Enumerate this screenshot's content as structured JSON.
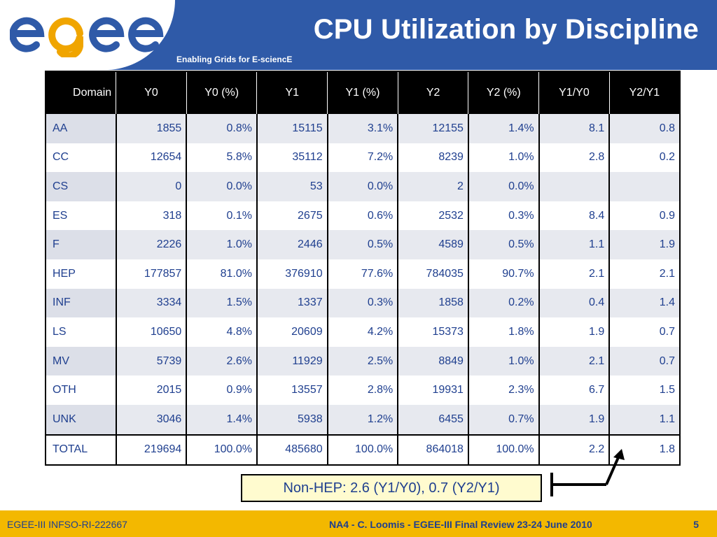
{
  "header": {
    "logo_text": "egee",
    "title": "CPU Utilization by Discipline",
    "subtitle": "Enabling Grids for E-sciencE"
  },
  "table": {
    "columns": [
      "Domain",
      "Y0",
      "Y0 (%)",
      "Y1",
      "Y1 (%)",
      "Y2",
      "Y2 (%)",
      "Y1/Y0",
      "Y2/Y1"
    ],
    "rows": [
      [
        "AA",
        "1855",
        "0.8%",
        "15115",
        "3.1%",
        "12155",
        "1.4%",
        "8.1",
        "0.8"
      ],
      [
        "CC",
        "12654",
        "5.8%",
        "35112",
        "7.2%",
        "8239",
        "1.0%",
        "2.8",
        "0.2"
      ],
      [
        "CS",
        "0",
        "0.0%",
        "53",
        "0.0%",
        "2",
        "0.0%",
        "",
        ""
      ],
      [
        "ES",
        "318",
        "0.1%",
        "2675",
        "0.6%",
        "2532",
        "0.3%",
        "8.4",
        "0.9"
      ],
      [
        "F",
        "2226",
        "1.0%",
        "2446",
        "0.5%",
        "4589",
        "0.5%",
        "1.1",
        "1.9"
      ],
      [
        "HEP",
        "177857",
        "81.0%",
        "376910",
        "77.6%",
        "784035",
        "90.7%",
        "2.1",
        "2.1"
      ],
      [
        "INF",
        "3334",
        "1.5%",
        "1337",
        "0.3%",
        "1858",
        "0.2%",
        "0.4",
        "1.4"
      ],
      [
        "LS",
        "10650",
        "4.8%",
        "20609",
        "4.2%",
        "15373",
        "1.8%",
        "1.9",
        "0.7"
      ],
      [
        "MV",
        "5739",
        "2.6%",
        "11929",
        "2.5%",
        "8849",
        "1.0%",
        "2.1",
        "0.7"
      ],
      [
        "OTH",
        "2015",
        "0.9%",
        "13557",
        "2.8%",
        "19931",
        "2.3%",
        "6.7",
        "1.5"
      ],
      [
        "UNK",
        "3046",
        "1.4%",
        "5938",
        "1.2%",
        "6455",
        "0.7%",
        "1.9",
        "1.1"
      ]
    ],
    "total": [
      "TOTAL",
      "219694",
      "100.0%",
      "485680",
      "100.0%",
      "864018",
      "100.0%",
      "2.2",
      "1.8"
    ]
  },
  "callout": {
    "text": "Non-HEP: 2.6 (Y1/Y0), 0.7 (Y2/Y1)"
  },
  "footer": {
    "left": "EGEE-III INFSO-RI-222667",
    "center": "NA4 - C. Loomis - EGEE-III Final Review 23-24 June 2010",
    "page_number": "5"
  },
  "colors": {
    "header_blue": "#2f5aa8",
    "footer_yellow": "#f3b800",
    "text_blue": "#1f3f8f",
    "logo_orange": "#f0a500"
  }
}
